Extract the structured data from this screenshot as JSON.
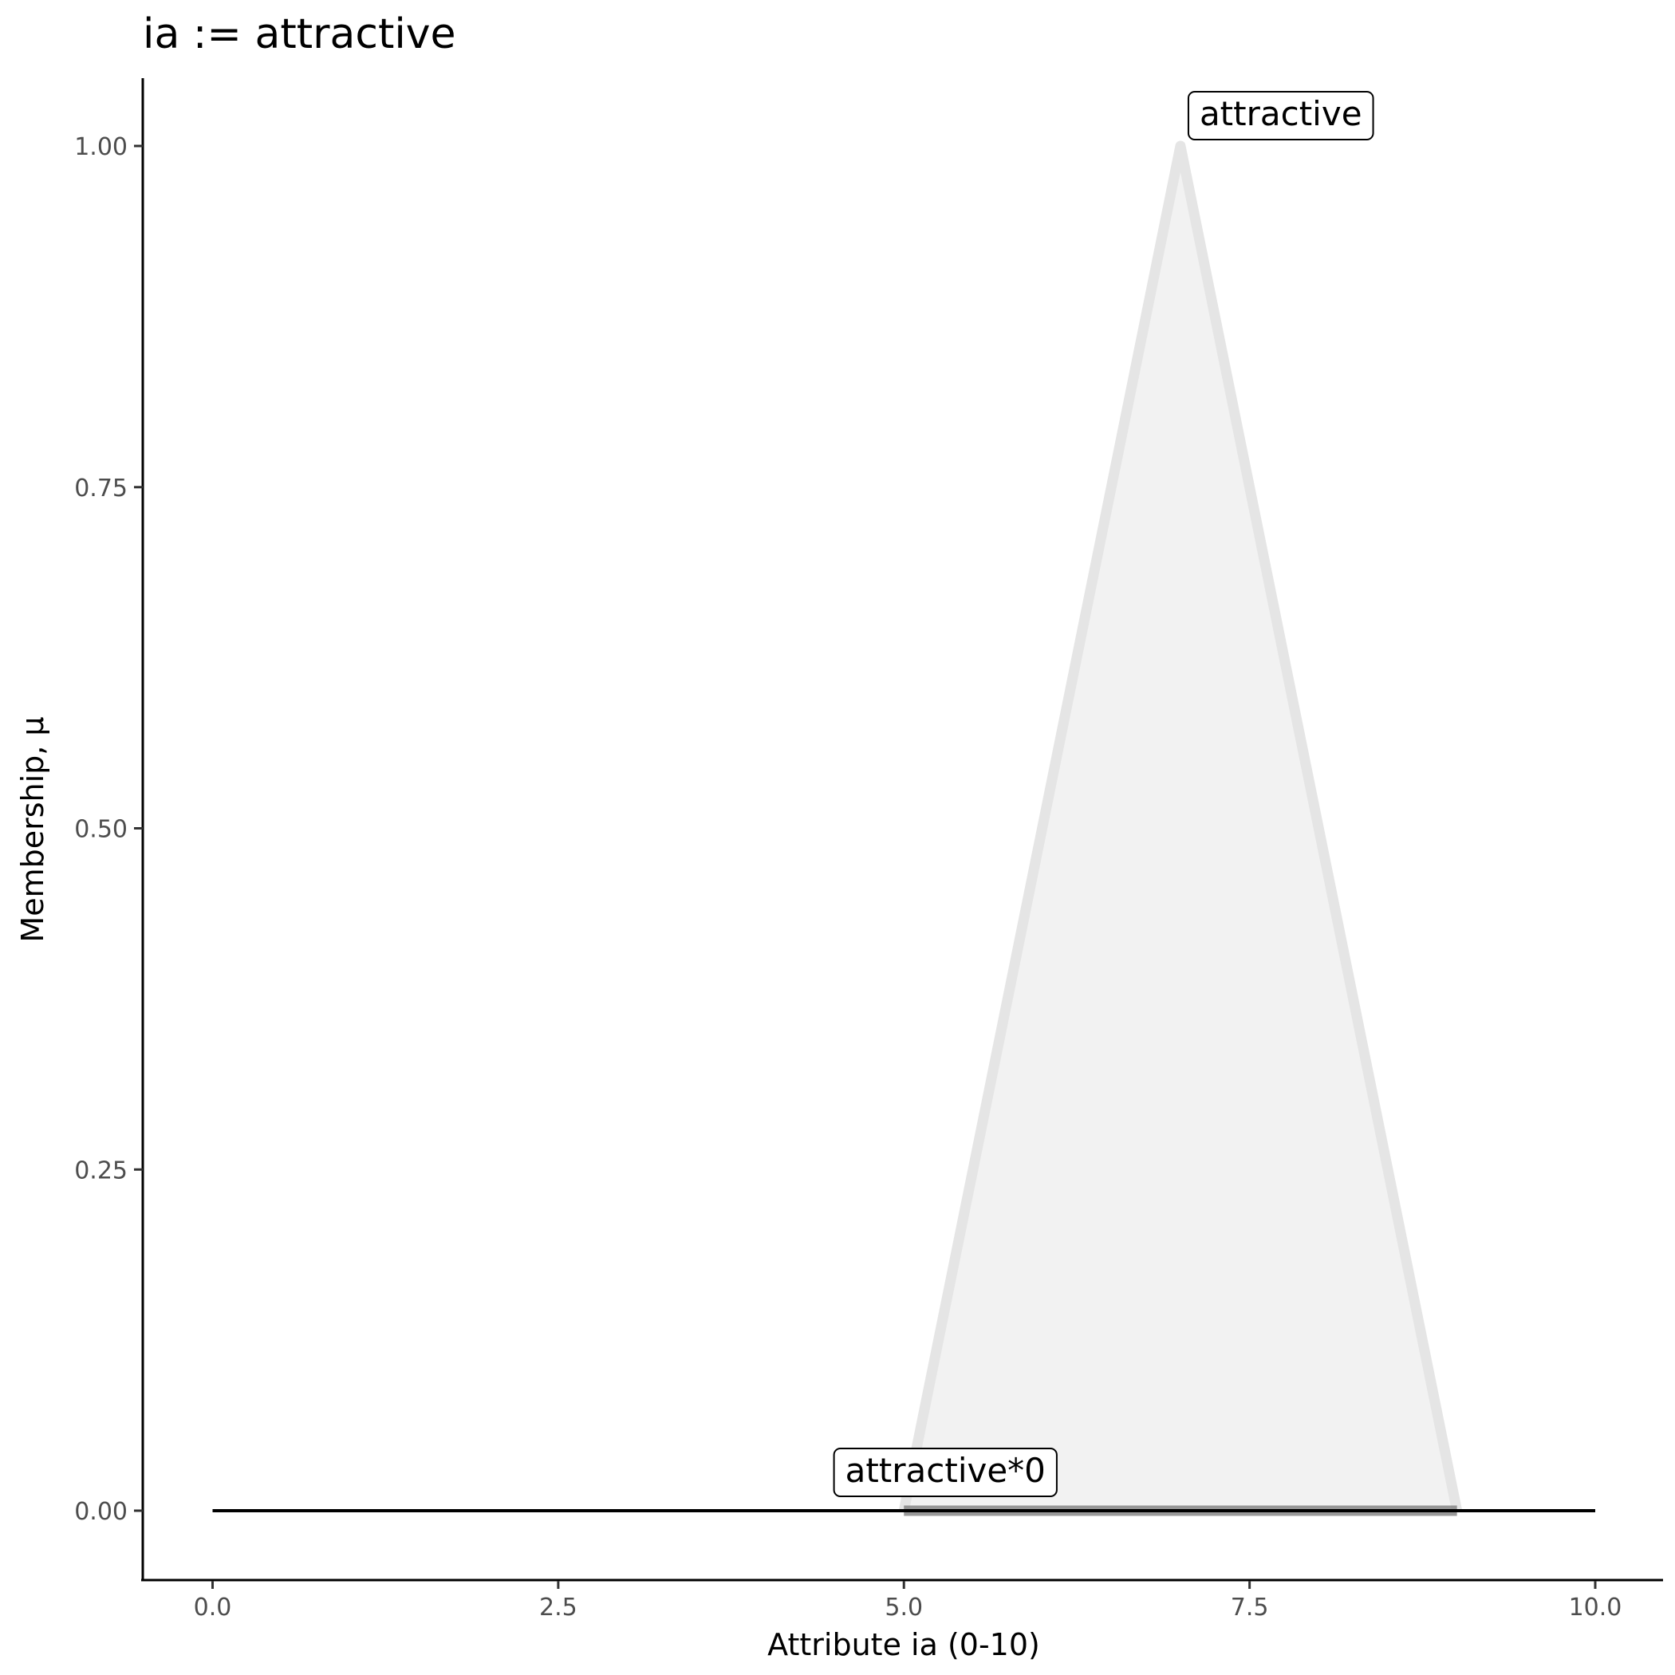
{
  "chart_data": {
    "type": "line",
    "title": "ia := attractive",
    "xlabel": "Attribute ia (0-10)",
    "ylabel": "Membership, μ",
    "xlim": [
      -0.5,
      10.5
    ],
    "ylim": [
      -0.05,
      1.05
    ],
    "xticks": [
      "0.0",
      "2.5",
      "5.0",
      "7.5",
      "10.0"
    ],
    "xtick_values": [
      0,
      2.5,
      5,
      7.5,
      10
    ],
    "yticks": [
      "0.00",
      "0.25",
      "0.50",
      "0.75",
      "1.00"
    ],
    "ytick_values": [
      0,
      0.25,
      0.5,
      0.75,
      1
    ],
    "grid": false,
    "series": [
      {
        "name": "attractive",
        "x": [
          5,
          7,
          9
        ],
        "y": [
          0,
          1,
          0
        ],
        "color": "#e5e5e5",
        "fill": "#f2f2f2"
      },
      {
        "name": "attractive*0",
        "x": [
          5,
          9
        ],
        "y": [
          0,
          0
        ],
        "color": "#7f7f7f"
      },
      {
        "x": [
          0,
          10
        ],
        "y": [
          0,
          0
        ],
        "color": "#000000"
      }
    ],
    "annotations": [
      {
        "text": "attractive",
        "x": 7,
        "y": 1
      },
      {
        "text": "attractive*0",
        "x": 5.3,
        "y": 0
      }
    ]
  }
}
